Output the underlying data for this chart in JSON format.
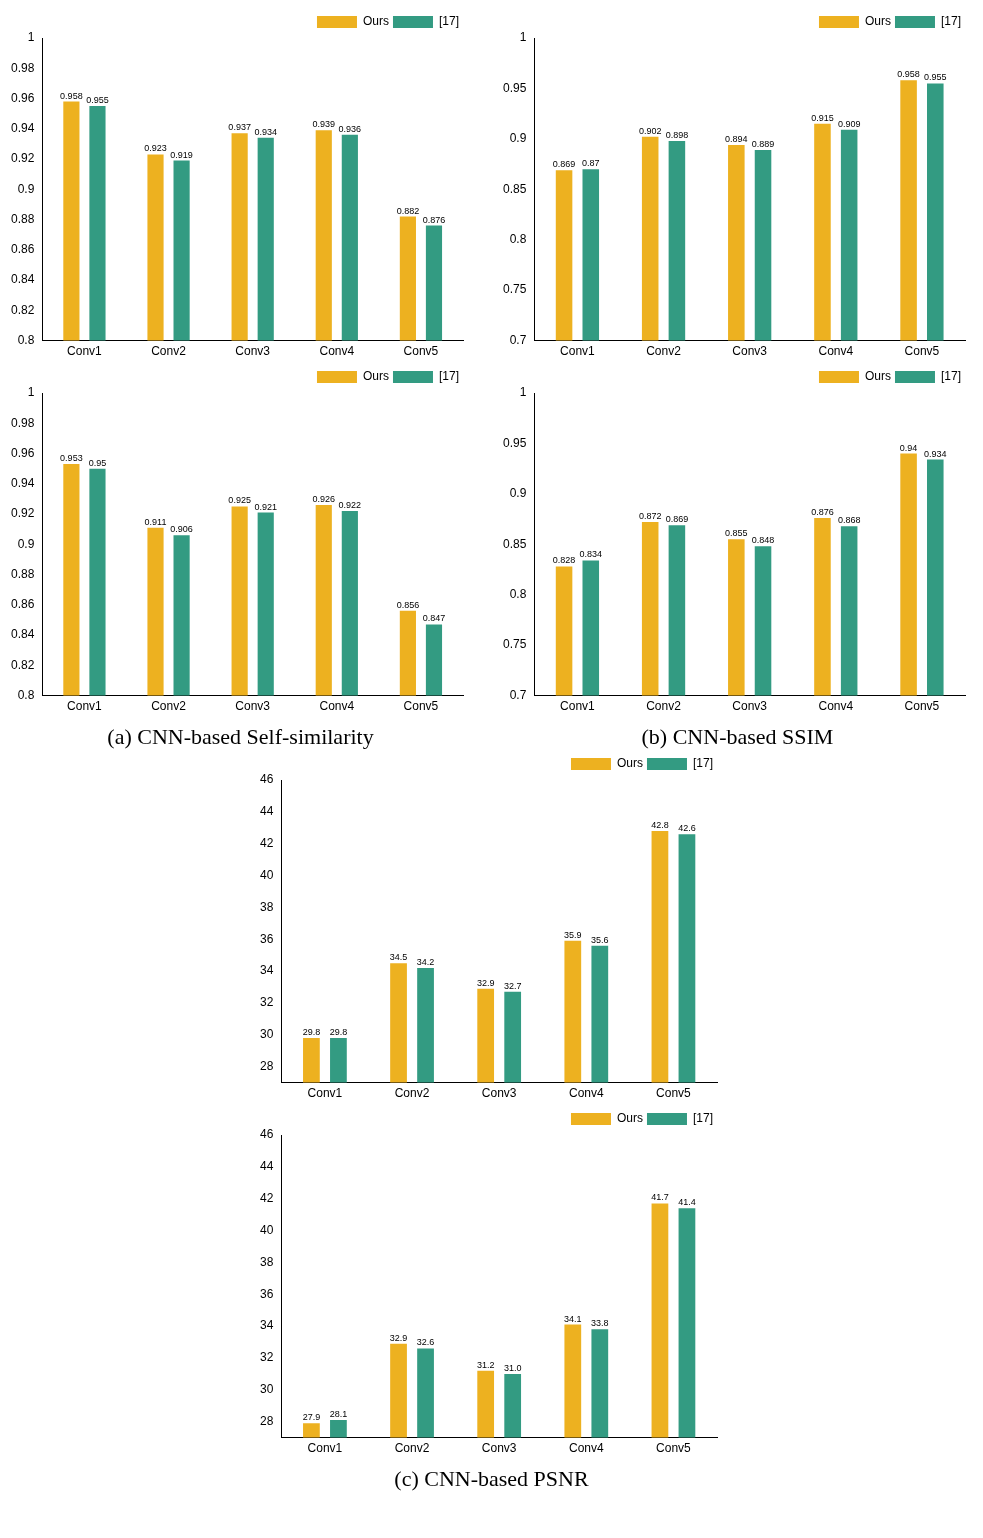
{
  "chart_data": [
    {
      "type": "bar",
      "categories": [
        "Conv1",
        "Conv2",
        "Conv3",
        "Conv4",
        "Conv5"
      ],
      "series": [
        {
          "name": "Ours",
          "color": "#edb120",
          "values": [
            0.958,
            0.923,
            0.937,
            0.939,
            0.882
          ]
        },
        {
          "name": "[17]",
          "color": "#339b82",
          "values": [
            0.955,
            0.919,
            0.934,
            0.936,
            0.876
          ]
        }
      ],
      "ylim": [
        0.8,
        1
      ],
      "yticks": [
        0.8,
        0.82,
        0.84,
        0.86,
        0.88,
        0.9,
        0.92,
        0.94,
        0.96,
        0.98,
        1
      ],
      "grid": false,
      "legend": "top right",
      "data_labels": true
    },
    {
      "type": "bar",
      "categories": [
        "Conv1",
        "Conv2",
        "Conv3",
        "Conv4",
        "Conv5"
      ],
      "series": [
        {
          "name": "Ours",
          "color": "#edb120",
          "values": [
            0.869,
            0.902,
            0.894,
            0.915,
            0.958
          ]
        },
        {
          "name": "[17]",
          "color": "#339b82",
          "values": [
            0.87,
            0.898,
            0.889,
            0.909,
            0.955
          ]
        }
      ],
      "ylim": [
        0.7,
        1
      ],
      "yticks": [
        0.7,
        0.75,
        0.8,
        0.85,
        0.9,
        0.95,
        1
      ],
      "grid": false,
      "legend": "top right",
      "data_labels": true
    },
    {
      "type": "bar",
      "categories": [
        "Conv1",
        "Conv2",
        "Conv3",
        "Conv4",
        "Conv5"
      ],
      "series": [
        {
          "name": "Ours",
          "color": "#edb120",
          "values": [
            0.953,
            0.911,
            0.925,
            0.926,
            0.856
          ]
        },
        {
          "name": "[17]",
          "color": "#339b82",
          "values": [
            0.95,
            0.906,
            0.921,
            0.922,
            0.847
          ]
        }
      ],
      "ylim": [
        0.8,
        1
      ],
      "yticks": [
        0.8,
        0.82,
        0.84,
        0.86,
        0.88,
        0.9,
        0.92,
        0.94,
        0.96,
        0.98,
        1
      ],
      "grid": false,
      "legend": "top right",
      "data_labels": true,
      "annotations": [
        "(a) CNN-based Self-similarity"
      ]
    },
    {
      "type": "bar",
      "categories": [
        "Conv1",
        "Conv2",
        "Conv3",
        "Conv4",
        "Conv5"
      ],
      "series": [
        {
          "name": "Ours",
          "color": "#edb120",
          "values": [
            0.828,
            0.872,
            0.855,
            0.876,
            0.94
          ]
        },
        {
          "name": "[17]",
          "color": "#339b82",
          "values": [
            0.834,
            0.869,
            0.848,
            0.868,
            0.934
          ]
        }
      ],
      "ylim": [
        0.7,
        1
      ],
      "yticks": [
        0.7,
        0.75,
        0.8,
        0.85,
        0.9,
        0.95,
        1
      ],
      "grid": false,
      "legend": "top right",
      "data_labels": true,
      "annotations": [
        "(b) CNN-based SSIM"
      ]
    },
    {
      "type": "bar",
      "categories": [
        "Conv1",
        "Conv2",
        "Conv3",
        "Conv4",
        "Conv5"
      ],
      "series": [
        {
          "name": "Ours",
          "color": "#edb120",
          "values": [
            29.8,
            34.5,
            32.9,
            35.9,
            42.8
          ]
        },
        {
          "name": "[17]",
          "color": "#339b82",
          "values": [
            29.8,
            34.2,
            32.7,
            35.6,
            42.6
          ]
        }
      ],
      "ylim": [
        27,
        46
      ],
      "yticks": [
        28,
        30,
        32,
        34,
        36,
        38,
        40,
        42,
        44,
        46
      ],
      "grid": false,
      "legend": "top right",
      "data_labels": true
    },
    {
      "type": "bar",
      "categories": [
        "Conv1",
        "Conv2",
        "Conv3",
        "Conv4",
        "Conv5"
      ],
      "series": [
        {
          "name": "Ours",
          "color": "#edb120",
          "values": [
            27.9,
            32.9,
            31.2,
            34.1,
            41.7
          ],
          "value_labels": [
            "27.9",
            "32.9",
            "31.2",
            "34.1",
            "41.7"
          ]
        },
        {
          "name": "[17]",
          "color": "#339b82",
          "values": [
            28.1,
            32.6,
            31.0,
            33.8,
            41.4
          ],
          "value_labels": [
            "28.1",
            "32.6",
            "31.0",
            "33.8",
            "41.4"
          ]
        }
      ],
      "ylim": [
        27,
        46
      ],
      "yticks": [
        28,
        30,
        32,
        34,
        36,
        38,
        40,
        42,
        44,
        46
      ],
      "grid": false,
      "legend": "top right",
      "annotations": [
        "(c) CNN-based PSNR"
      ]
    }
  ]
}
